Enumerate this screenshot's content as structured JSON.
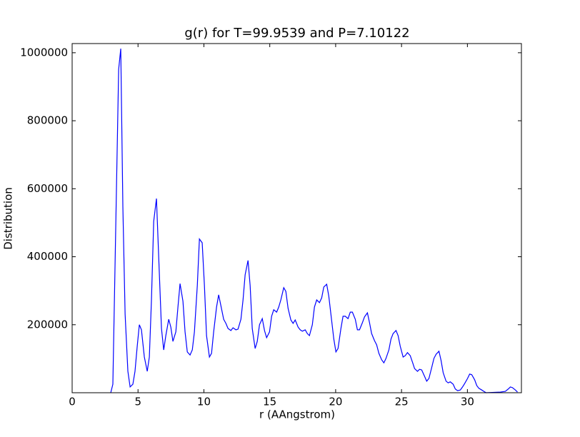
{
  "chart_data": {
    "type": "line",
    "title": "g(r) for T=99.9539 and P=7.10122",
    "x_label": "r (AAngstrom)",
    "y_label": "Distribution",
    "xlim": [
      0,
      34.1
    ],
    "ylim": [
      0,
      1027000
    ],
    "xticks": [
      0,
      5,
      10,
      15,
      20,
      25,
      30
    ],
    "yticks": [
      200000,
      400000,
      600000,
      800000,
      1000000
    ],
    "grid": false,
    "x": [
      2.93,
      3.09,
      3.53,
      3.69,
      3.85,
      4.02,
      4.23,
      4.4,
      4.61,
      4.77,
      4.94,
      5.1,
      5.26,
      5.48,
      5.7,
      5.86,
      6.02,
      6.19,
      6.4,
      6.57,
      6.78,
      6.95,
      7.11,
      7.33,
      7.49,
      7.65,
      7.87,
      8.03,
      8.19,
      8.41,
      8.57,
      8.74,
      8.95,
      9.12,
      9.28,
      9.5,
      9.66,
      9.87,
      10.04,
      10.2,
      10.42,
      10.58,
      10.74,
      10.96,
      11.12,
      11.29,
      11.5,
      11.67,
      11.83,
      12.05,
      12.21,
      12.43,
      12.59,
      12.81,
      12.97,
      13.13,
      13.35,
      13.51,
      13.67,
      13.89,
      14.05,
      14.22,
      14.43,
      14.6,
      14.76,
      14.98,
      15.14,
      15.3,
      15.52,
      15.68,
      15.84,
      16.06,
      16.22,
      16.39,
      16.6,
      16.77,
      16.93,
      17.15,
      17.31,
      17.47,
      17.69,
      17.85,
      18.01,
      18.23,
      18.39,
      18.56,
      18.77,
      18.94,
      19.1,
      19.32,
      19.48,
      19.64,
      19.86,
      20.02,
      20.18,
      20.4,
      20.56,
      20.73,
      20.94,
      21.11,
      21.27,
      21.49,
      21.65,
      21.81,
      22.03,
      22.19,
      22.41,
      22.57,
      22.73,
      22.95,
      23.11,
      23.28,
      23.49,
      23.66,
      23.82,
      24.04,
      24.2,
      24.36,
      24.58,
      24.74,
      24.9,
      25.12,
      25.28,
      25.45,
      25.66,
      25.83,
      25.99,
      26.21,
      26.37,
      26.53,
      26.75,
      26.91,
      27.08,
      27.29,
      27.46,
      27.62,
      27.84,
      28.0,
      28.16,
      28.38,
      28.54,
      28.7,
      28.92,
      29.08,
      29.25,
      29.46,
      29.63,
      29.79,
      30.01,
      30.17,
      30.33,
      30.55,
      30.71,
      30.87,
      31.09,
      31.25,
      31.42,
      32.5,
      32.88,
      33.1,
      33.26,
      33.42,
      33.64,
      33.8
    ],
    "series": [
      {
        "name": "g(r)",
        "color": "#0000ff",
        "values": [
          0,
          25000,
          951000,
          1012000,
          546000,
          231000,
          63000,
          17000,
          25000,
          63000,
          137000,
          200000,
          185000,
          105000,
          63000,
          105000,
          273000,
          504000,
          571000,
          399000,
          189000,
          126000,
          168000,
          216000,
          193000,
          151000,
          179000,
          252000,
          321000,
          269000,
          179000,
          120000,
          111000,
          126000,
          179000,
          315000,
          452000,
          441000,
          315000,
          168000,
          105000,
          116000,
          179000,
          252000,
          288000,
          256000,
          216000,
          204000,
          189000,
          183000,
          191000,
          185000,
          187000,
          216000,
          273000,
          347000,
          389000,
          315000,
          189000,
          130000,
          151000,
          200000,
          218000,
          183000,
          162000,
          179000,
          225000,
          244000,
          237000,
          252000,
          273000,
          309000,
          298000,
          248000,
          214000,
          204000,
          214000,
          193000,
          185000,
          181000,
          185000,
          174000,
          168000,
          200000,
          252000,
          273000,
          265000,
          279000,
          311000,
          319000,
          284000,
          231000,
          158000,
          120000,
          130000,
          189000,
          225000,
          225000,
          218000,
          237000,
          237000,
          216000,
          185000,
          185000,
          206000,
          223000,
          235000,
          206000,
          174000,
          153000,
          141000,
          116000,
          97000,
          88000,
          101000,
          126000,
          158000,
          174000,
          183000,
          168000,
          137000,
          105000,
          109000,
          118000,
          109000,
          90000,
          71000,
          63000,
          69000,
          67000,
          48000,
          34000,
          42000,
          74000,
          101000,
          113000,
          122000,
          95000,
          59000,
          34000,
          29000,
          32000,
          25000,
          11000,
          6000,
          8000,
          17000,
          27000,
          42000,
          55000,
          53000,
          38000,
          21000,
          13000,
          8000,
          4000,
          0,
          2000,
          4000,
          11000,
          17000,
          15000,
          8000,
          2000
        ]
      }
    ]
  }
}
